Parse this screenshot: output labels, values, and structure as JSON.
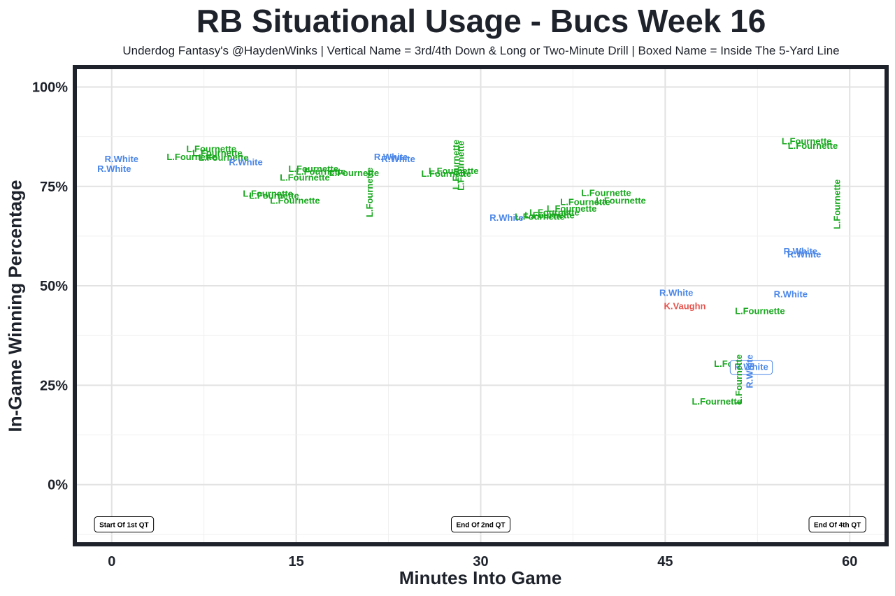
{
  "chart_data": {
    "type": "scatter",
    "title": "RB Situational Usage - Bucs Week 16",
    "subtitle": "Underdog Fantasy's @HaydenWinks | Vertical Name = 3rd/4th Down & Long or Two-Minute Drill | Boxed Name = Inside The 5-Yard Line",
    "xlabel": "Minutes Into Game",
    "ylabel": "In-Game Winning Percentage",
    "xlim": [
      -3,
      63
    ],
    "ylim": [
      -15,
      105
    ],
    "x_ticks": [
      0,
      15,
      30,
      45,
      60
    ],
    "x_tick_labels": [
      "0",
      "15",
      "30",
      "45",
      "60"
    ],
    "y_ticks": [
      0,
      25,
      50,
      75,
      100
    ],
    "y_tick_labels": [
      "0%",
      "25%",
      "50%",
      "75%",
      "100%"
    ],
    "grid": true,
    "colors": {
      "R.White": "#4a86e8",
      "L.Fournette": "#18a81e",
      "K.Vaughn": "#e5554f"
    },
    "quarter_markers": [
      {
        "x": 1,
        "label": "Start Of 1st QT"
      },
      {
        "x": 30,
        "label": "End Of 2nd QT"
      },
      {
        "x": 59,
        "label": "End Of 4th QT"
      }
    ],
    "points": [
      {
        "x": 0.8,
        "y": 82,
        "player": "R.White",
        "vertical": false,
        "boxed": false
      },
      {
        "x": 0.2,
        "y": 79.5,
        "player": "R.White",
        "vertical": false,
        "boxed": false
      },
      {
        "x": 8.1,
        "y": 84.5,
        "player": "L.Fournette",
        "vertical": false,
        "boxed": false
      },
      {
        "x": 8.6,
        "y": 83.5,
        "player": "L.Fournette",
        "vertical": false,
        "boxed": false
      },
      {
        "x": 6.5,
        "y": 82.5,
        "player": "L.Fournette",
        "vertical": false,
        "boxed": false
      },
      {
        "x": 9.1,
        "y": 82.3,
        "player": "L.Fournette",
        "vertical": false,
        "boxed": false
      },
      {
        "x": 10.9,
        "y": 81.2,
        "player": "R.White",
        "vertical": false,
        "boxed": false
      },
      {
        "x": 16.4,
        "y": 79.5,
        "player": "L.Fournette",
        "vertical": false,
        "boxed": false
      },
      {
        "x": 17.0,
        "y": 78.8,
        "player": "L.Fournette",
        "vertical": false,
        "boxed": false
      },
      {
        "x": 19.7,
        "y": 78.5,
        "player": "L.Fournette",
        "vertical": false,
        "boxed": false
      },
      {
        "x": 15.7,
        "y": 77.3,
        "player": "L.Fournette",
        "vertical": false,
        "boxed": false
      },
      {
        "x": 12.7,
        "y": 73.3,
        "player": "L.Fournette",
        "vertical": false,
        "boxed": false
      },
      {
        "x": 13.2,
        "y": 72.8,
        "player": "L.Fournette",
        "vertical": false,
        "boxed": false
      },
      {
        "x": 14.9,
        "y": 71.5,
        "player": "L.Fournette",
        "vertical": false,
        "boxed": false
      },
      {
        "x": 21.0,
        "y": 73.5,
        "player": "L.Fournette",
        "vertical": true,
        "boxed": false
      },
      {
        "x": 22.7,
        "y": 82.5,
        "player": "R.White",
        "vertical": false,
        "boxed": false
      },
      {
        "x": 23.3,
        "y": 82.0,
        "player": "R.White",
        "vertical": false,
        "boxed": false
      },
      {
        "x": 27.8,
        "y": 79.0,
        "player": "L.Fournette",
        "vertical": false,
        "boxed": false
      },
      {
        "x": 27.2,
        "y": 78.3,
        "player": "L.Fournette",
        "vertical": false,
        "boxed": false
      },
      {
        "x": 28.0,
        "y": 80.5,
        "player": "L.Fournette",
        "vertical": true,
        "boxed": false
      },
      {
        "x": 28.4,
        "y": 80.2,
        "player": "L.Fournette",
        "vertical": true,
        "boxed": false
      },
      {
        "x": 32.1,
        "y": 67.2,
        "player": "R.White",
        "vertical": false,
        "boxed": false
      },
      {
        "x": 40.2,
        "y": 73.5,
        "player": "L.Fournette",
        "vertical": false,
        "boxed": false
      },
      {
        "x": 41.4,
        "y": 71.5,
        "player": "L.Fournette",
        "vertical": false,
        "boxed": false
      },
      {
        "x": 38.5,
        "y": 71.2,
        "player": "L.Fournette",
        "vertical": false,
        "boxed": false
      },
      {
        "x": 37.4,
        "y": 69.5,
        "player": "L.Fournette",
        "vertical": false,
        "boxed": false
      },
      {
        "x": 36.0,
        "y": 68.5,
        "player": "L.Fournette",
        "vertical": false,
        "boxed": false
      },
      {
        "x": 35.6,
        "y": 67.8,
        "player": "L.Fournette",
        "vertical": false,
        "boxed": false
      },
      {
        "x": 34.8,
        "y": 67.5,
        "player": "L.Fournette",
        "vertical": false,
        "boxed": false
      },
      {
        "x": 56.0,
        "y": 58.8,
        "player": "R.White",
        "vertical": false,
        "boxed": false
      },
      {
        "x": 56.3,
        "y": 58.0,
        "player": "R.White",
        "vertical": false,
        "boxed": false
      },
      {
        "x": 56.5,
        "y": 86.5,
        "player": "L.Fournette",
        "vertical": false,
        "boxed": false
      },
      {
        "x": 57.0,
        "y": 85.3,
        "player": "L.Fournette",
        "vertical": false,
        "boxed": false
      },
      {
        "x": 59.0,
        "y": 70.5,
        "player": "L.Fournette",
        "vertical": true,
        "boxed": false
      },
      {
        "x": 45.9,
        "y": 48.3,
        "player": "R.White",
        "vertical": false,
        "boxed": false
      },
      {
        "x": 46.6,
        "y": 45.0,
        "player": "K.Vaughn",
        "vertical": false,
        "boxed": false
      },
      {
        "x": 55.2,
        "y": 48.0,
        "player": "R.White",
        "vertical": false,
        "boxed": false
      },
      {
        "x": 52.7,
        "y": 43.8,
        "player": "L.Fournette",
        "vertical": false,
        "boxed": false
      },
      {
        "x": 51.0,
        "y": 30.5,
        "player": "L.Fournette",
        "vertical": false,
        "boxed": false
      },
      {
        "x": 52.0,
        "y": 29.5,
        "player": "R.White",
        "vertical": false,
        "boxed": true
      },
      {
        "x": 51.0,
        "y": 26.5,
        "player": "L.Fournette",
        "vertical": true,
        "boxed": false
      },
      {
        "x": 51.9,
        "y": 28.5,
        "player": "R.White",
        "vertical": true,
        "boxed": false
      },
      {
        "x": 49.2,
        "y": 21.0,
        "player": "L.Fournette",
        "vertical": false,
        "boxed": false
      }
    ]
  }
}
